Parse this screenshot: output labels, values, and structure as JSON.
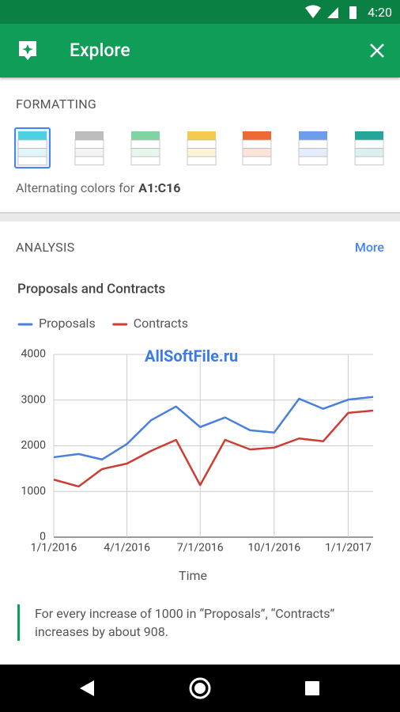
{
  "status": {
    "time": "4:20"
  },
  "appbar": {
    "title": "Explore"
  },
  "formatting": {
    "heading": "FORMATTING",
    "caption_prefix": "Alternating colors for",
    "caption_range": "A1:C16"
  },
  "analysis": {
    "heading": "ANALYSIS",
    "more": "More",
    "insight": "For every increase of 1000 in “Proposals”, “Contracts” increases by about 908."
  },
  "watermark": "AllSoftFile.ru",
  "chart_data": {
    "type": "line",
    "title": "Proposals and Contracts",
    "x_label": "Time",
    "x": [
      "2016-01-01",
      "2016-02-01",
      "2016-03-01",
      "2016-04-01",
      "2016-05-01",
      "2016-06-01",
      "2016-07-01",
      "2016-08-01",
      "2016-09-01",
      "2016-10-01",
      "2016-11-01",
      "2016-12-01",
      "2017-01-01",
      "2017-02-01"
    ],
    "series": [
      {
        "name": "Proposals",
        "color": "#4a7fdc",
        "values": [
          1750,
          1820,
          1700,
          2040,
          2560,
          2860,
          2410,
          2620,
          2340,
          2290,
          3030,
          2810,
          3010,
          3070
        ]
      },
      {
        "name": "Contracts",
        "color": "#cc3e33",
        "values": [
          1260,
          1110,
          1490,
          1610,
          1890,
          2130,
          1140,
          2130,
          1920,
          1960,
          2160,
          2100,
          2720,
          2770
        ]
      }
    ],
    "xlim": [
      "2016-01-01",
      "2017-02-01"
    ],
    "xticks": [
      {
        "value": "2016-01-01",
        "label": "1/1/2016"
      },
      {
        "value": "2016-04-01",
        "label": "4/1/2016"
      },
      {
        "value": "2016-07-01",
        "label": "7/1/2016"
      },
      {
        "value": "2016-10-01",
        "label": "10/1/2016"
      },
      {
        "value": "2017-01-01",
        "label": "1/1/2017"
      }
    ],
    "ylim": [
      0,
      4000
    ],
    "yticks": [
      0,
      1000,
      2000,
      3000,
      4000
    ],
    "grid": true,
    "legend": "top"
  }
}
